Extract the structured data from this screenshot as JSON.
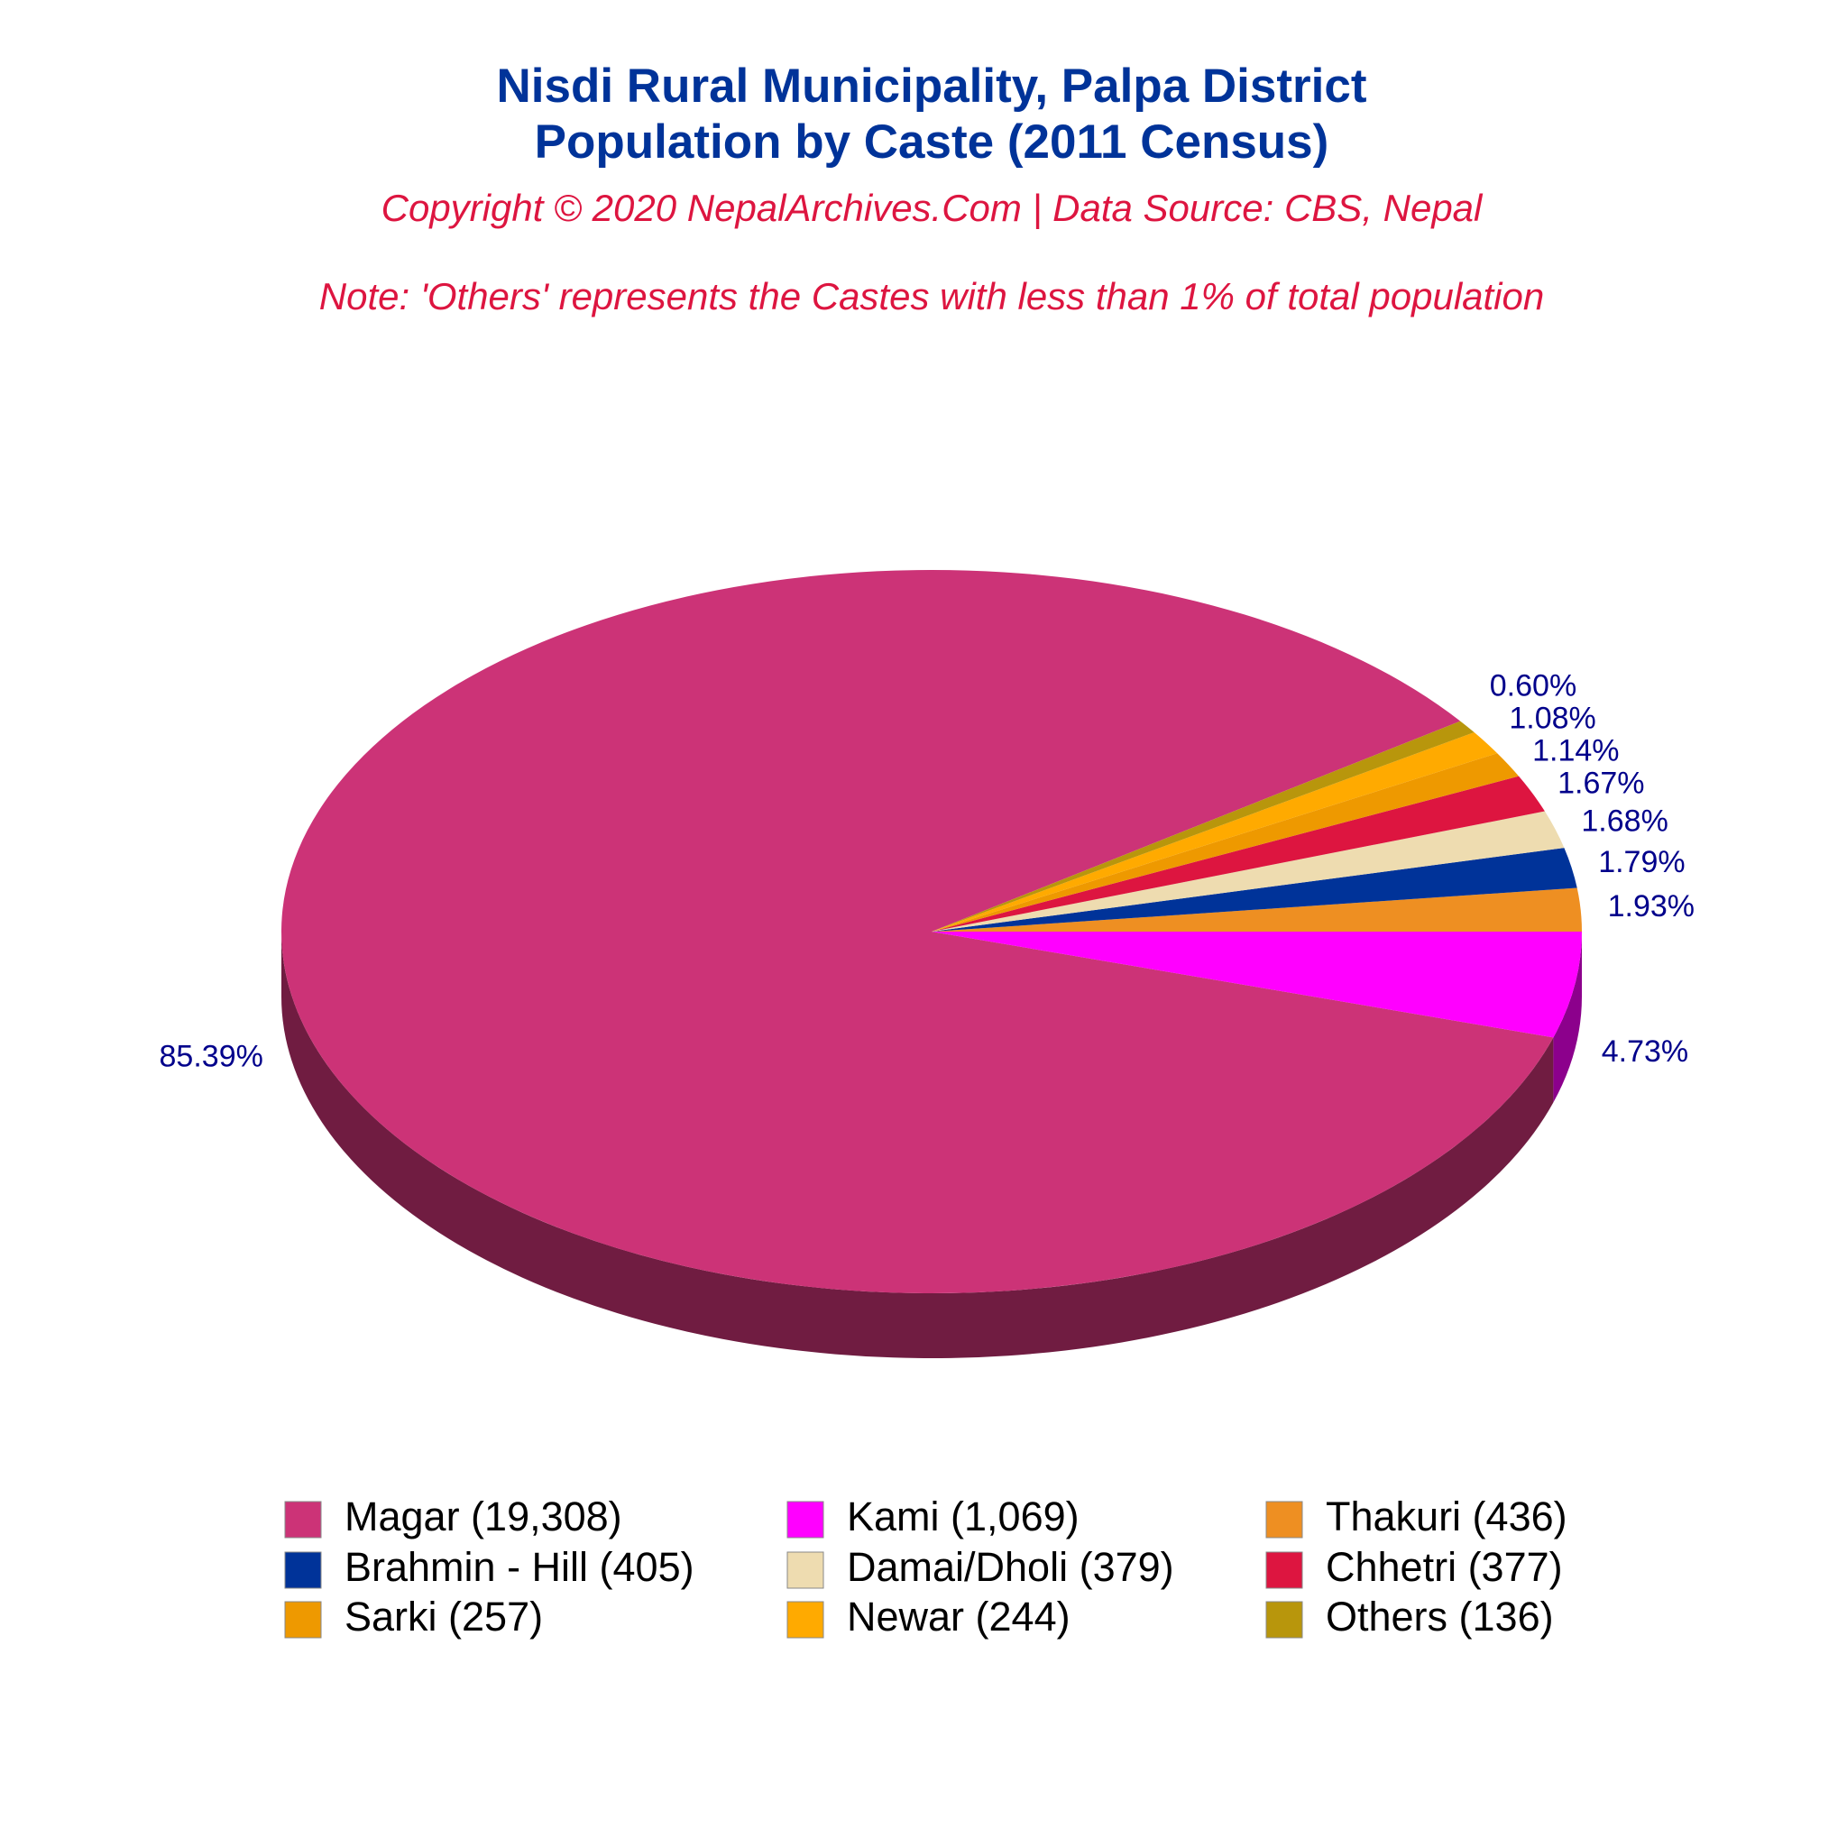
{
  "chart_data": {
    "type": "pie3d",
    "title": "Nisdi Rural Municipality, Palpa District",
    "subtitle": "Population by Caste (2011 Census)",
    "source": "Copyright © 2020 NepalArchives.Com | Data Source: CBS, Nepal",
    "note": "Note: 'Others' represents the Castes with less than 1% of total population",
    "categories": [
      "Magar (19,308)",
      "Kami (1,069)",
      "Thakuri (436)",
      "Brahmin - Hill (405)",
      "Damai/Dholi (379)",
      "Chhetri (377)",
      "Sarki (257)",
      "Newar (244)",
      "Others (136)"
    ],
    "values": [
      85.39,
      4.73,
      1.93,
      1.79,
      1.68,
      1.67,
      1.14,
      1.08,
      0.6
    ],
    "value_labels": [
      "85.39%",
      "4.73%",
      "1.93%",
      "1.79%",
      "1.68%",
      "1.67%",
      "1.14%",
      "1.08%",
      "0.60%"
    ],
    "colors": [
      "#cc3377",
      "#ff00ff",
      "#ee8f22",
      "#003399",
      "#eedcb0",
      "#dd1540",
      "#ee9900",
      "#ffaa00",
      "#b8960c"
    ]
  }
}
